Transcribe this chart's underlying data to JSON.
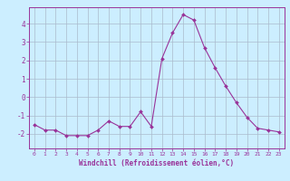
{
  "x": [
    0,
    1,
    2,
    3,
    4,
    5,
    6,
    7,
    8,
    9,
    10,
    11,
    12,
    13,
    14,
    15,
    16,
    17,
    18,
    19,
    20,
    21,
    22,
    23
  ],
  "y": [
    -1.5,
    -1.8,
    -1.8,
    -2.1,
    -2.1,
    -2.1,
    -1.8,
    -1.3,
    -1.6,
    -1.6,
    -0.8,
    -1.6,
    2.1,
    3.5,
    4.5,
    4.2,
    2.7,
    1.6,
    0.6,
    -0.3,
    -1.1,
    -1.7,
    -1.8,
    -1.9
  ],
  "line_color": "#993399",
  "marker": "D",
  "marker_size": 2.0,
  "bg_color": "#cceeff",
  "grid_color": "#aabbcc",
  "xlabel": "Windchill (Refroidissement éolien,°C)",
  "xlabel_color": "#993399",
  "tick_color": "#993399",
  "xlim": [
    -0.5,
    23.5
  ],
  "ylim": [
    -2.8,
    4.9
  ],
  "yticks": [
    -2,
    -1,
    0,
    1,
    2,
    3,
    4
  ],
  "xticks": [
    0,
    1,
    2,
    3,
    4,
    5,
    6,
    7,
    8,
    9,
    10,
    11,
    12,
    13,
    14,
    15,
    16,
    17,
    18,
    19,
    20,
    21,
    22,
    23
  ]
}
